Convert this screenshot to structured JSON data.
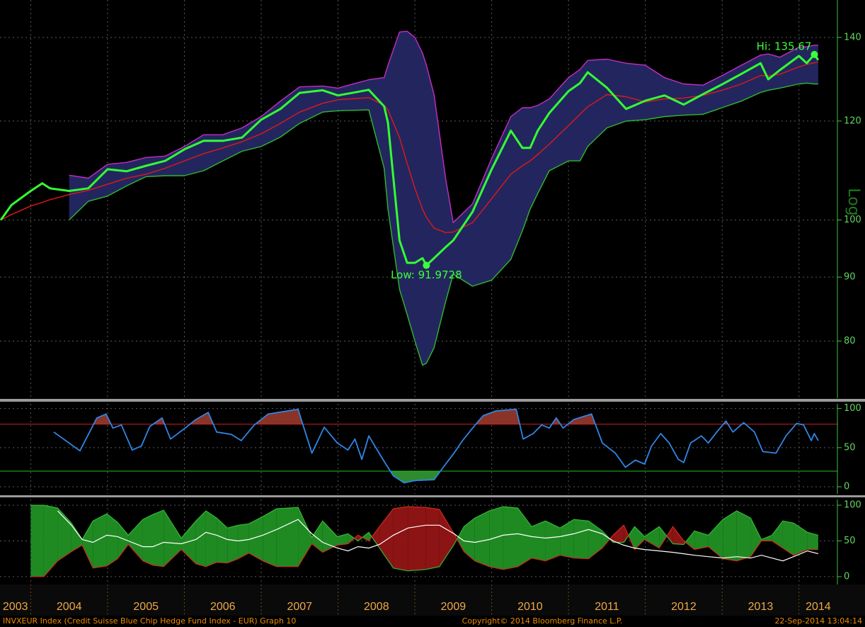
{
  "chart_data": [
    {
      "type": "line",
      "log_scale": true,
      "grid": true,
      "ylabel": "Log",
      "xlim": [
        2003.6,
        2014.5
      ],
      "xticks": [
        2003,
        2004,
        2005,
        2006,
        2007,
        2008,
        2009,
        2010,
        2011,
        2012,
        2013,
        2014
      ],
      "ylim": [
        72,
        150
      ],
      "yticks": [
        80,
        90,
        100,
        120,
        140
      ],
      "band_color": "#23265e",
      "x": [
        2003.61,
        2003.75,
        2004,
        2004.15,
        2004.25,
        2004.5,
        2004.75,
        2005,
        2005.25,
        2005.5,
        2005.75,
        2006,
        2006.25,
        2006.5,
        2006.75,
        2007,
        2007.25,
        2007.5,
        2007.8,
        2008,
        2008.4,
        2008.6,
        2008.65,
        2008.8,
        2008.9,
        2009,
        2009.1,
        2009.15,
        2009.25,
        2009.4,
        2009.5,
        2009.75,
        2010,
        2010.25,
        2010.4,
        2010.5,
        2010.6,
        2010.75,
        2011,
        2011.15,
        2011.25,
        2011.5,
        2011.75,
        2012,
        2012.25,
        2012.5,
        2012.75,
        2013,
        2013.25,
        2013.5,
        2013.6,
        2013.75,
        2014,
        2014.1,
        2014.2,
        2014.25
      ],
      "series": [
        {
          "color": "#c62cc6",
          "values": [
            null,
            null,
            null,
            null,
            null,
            108.6,
            108,
            110.8,
            111.2,
            112.2,
            112.5,
            114.5,
            117,
            117,
            118.5,
            121,
            124.5,
            127.8,
            128,
            127.5,
            129.5,
            130,
            133,
            141.4,
            141.6,
            140,
            136,
            133,
            126,
            108,
            99.5,
            103,
            112,
            121,
            123,
            123,
            123.5,
            125,
            130,
            132,
            134.2,
            134.5,
            133.5,
            133,
            130,
            128.5,
            128.2,
            130.5,
            133,
            135.5,
            135.8,
            135,
            137.5,
            137.6,
            138,
            138
          ]
        },
        {
          "color": "#2fb82f",
          "values": [
            null,
            null,
            null,
            null,
            null,
            100,
            103.5,
            104.5,
            106.5,
            108.3,
            108.5,
            108.5,
            109.5,
            111.5,
            113.5,
            114.5,
            116.5,
            119.5,
            122,
            122.3,
            122.5,
            110,
            102,
            88,
            84,
            80,
            76.5,
            76.8,
            79,
            86,
            90.5,
            88.5,
            89.5,
            93,
            98,
            102,
            105,
            109.5,
            111.5,
            111.5,
            114.5,
            118.5,
            120,
            120.3,
            121,
            121.3,
            121.5,
            123,
            124.5,
            126.5,
            127,
            127.5,
            128.5,
            128.7,
            128.5,
            128.5
          ]
        },
        {
          "color": "#e01818",
          "values": [
            100,
            101,
            102.6,
            103.3,
            103.8,
            104.8,
            105.6,
            106.8,
            108,
            108.8,
            110,
            111.5,
            113,
            114.2,
            115.5,
            117.2,
            119.5,
            122,
            124,
            124.8,
            125.3,
            123.5,
            122.5,
            116.4,
            111,
            106,
            102,
            100.5,
            98.5,
            97.7,
            97.8,
            99.5,
            104,
            108.8,
            110.5,
            111.5,
            112.8,
            115,
            119,
            121.5,
            123.2,
            126,
            125.5,
            124.3,
            125,
            125.2,
            125.8,
            127,
            128.5,
            130.5,
            130.4,
            130.8,
            132.6,
            133.2,
            133.6,
            133.8
          ]
        },
        {
          "color": "#33ff33",
          "values": [
            100,
            102.8,
            105.5,
            107,
            106,
            105.5,
            106,
            109.8,
            109.4,
            110.5,
            111.5,
            113.9,
            115.7,
            115.7,
            116.4,
            120.3,
            122.7,
            126.4,
            127,
            125.8,
            127.1,
            123.3,
            119.6,
            96.3,
            92.4,
            92.4,
            93.2,
            91.9728,
            93.2,
            95.1,
            96.3,
            101.5,
            109.8,
            117.9,
            114.2,
            114.2,
            117.9,
            121.8,
            126.8,
            128.7,
            131.3,
            127.6,
            122.7,
            124.6,
            125.8,
            123.7,
            126.1,
            128.4,
            130.9,
            133.5,
            129.6,
            131.8,
            135.3,
            133.5,
            135.67,
            134.3
          ]
        }
      ],
      "annotations": [
        {
          "text": "Hi: 135.67",
          "x": 2014.2,
          "y": 135.67
        },
        {
          "text": "Low: 91.9728",
          "x": 2009.15,
          "y": 91.9728
        }
      ]
    },
    {
      "type": "line",
      "grid": true,
      "ylim": [
        -9,
        106
      ],
      "yticks": [
        0,
        50,
        100
      ],
      "reference_lines": [
        {
          "value": 80,
          "color": "#d42020",
          "fill": "#8a3328"
        },
        {
          "value": 20,
          "color": "#22c022",
          "fill": "#2e8b2e"
        }
      ],
      "x": [
        2004.3,
        2004.64,
        2004.86,
        2004.98,
        2005.07,
        2005.18,
        2005.32,
        2005.44,
        2005.55,
        2005.71,
        2005.82,
        2006.01,
        2006.15,
        2006.31,
        2006.42,
        2006.61,
        2006.74,
        2006.91,
        2007.09,
        2007.48,
        2007.66,
        2007.82,
        2007.99,
        2008.13,
        2008.22,
        2008.31,
        2008.4,
        2008.59,
        2008.72,
        2008.86,
        2009,
        2009.25,
        2009.37,
        2009.51,
        2009.62,
        2009.76,
        2009.89,
        2010.06,
        2010.32,
        2010.41,
        2010.54,
        2010.65,
        2010.75,
        2010.84,
        2010.93,
        2011.07,
        2011.3,
        2011.44,
        2011.61,
        2011.74,
        2011.87,
        2011.99,
        2012.08,
        2012.2,
        2012.31,
        2012.43,
        2012.5,
        2012.59,
        2012.73,
        2012.82,
        2012.93,
        2013.05,
        2013.14,
        2013.28,
        2013.42,
        2013.53,
        2013.7,
        2013.83,
        2013.97,
        2014.06,
        2014.16,
        2014.2,
        2014.25
      ],
      "series": [
        {
          "color": "#2f86e6",
          "values": [
            70,
            46,
            88,
            93,
            75,
            79,
            47,
            52,
            77,
            88,
            61,
            75,
            86,
            95,
            70,
            67,
            59,
            79,
            93,
            99,
            43,
            76,
            56,
            47,
            61,
            35,
            65,
            34,
            14,
            5,
            8,
            9,
            25,
            43,
            59,
            76,
            91,
            97,
            99,
            61,
            68,
            79,
            75,
            88,
            75,
            86,
            93,
            56,
            43,
            25,
            34,
            29,
            52,
            68,
            56,
            35,
            31,
            56,
            65,
            56,
            70,
            84,
            70,
            82,
            70,
            45,
            43,
            65,
            81,
            79,
            59,
            68,
            59
          ]
        }
      ]
    },
    {
      "type": "area",
      "grid": true,
      "ylim": [
        -11,
        108
      ],
      "yticks": [
        0,
        50,
        100
      ],
      "fill_colors": {
        "positive": "#1f8a22",
        "negative": "#8c1414"
      },
      "x": [
        2004,
        2004.17,
        2004.35,
        2004.53,
        2004.67,
        2004.81,
        2004.99,
        2005.13,
        2005.27,
        2005.46,
        2005.59,
        2005.73,
        2005.96,
        2006.15,
        2006.28,
        2006.42,
        2006.56,
        2006.7,
        2006.84,
        2007.02,
        2007.2,
        2007.48,
        2007.66,
        2007.8,
        2007.99,
        2008.13,
        2008.26,
        2008.4,
        2008.54,
        2008.72,
        2008.91,
        2009.14,
        2009.32,
        2009.51,
        2009.64,
        2009.78,
        2009.97,
        2010.15,
        2010.34,
        2010.52,
        2010.7,
        2010.89,
        2011.07,
        2011.26,
        2011.44,
        2011.58,
        2011.72,
        2011.86,
        2011.99,
        2012.18,
        2012.36,
        2012.5,
        2012.64,
        2012.82,
        2013.01,
        2013.19,
        2013.37,
        2013.51,
        2013.65,
        2013.79,
        2013.93,
        2014.11,
        2014.25
      ],
      "series": [
        {
          "color": "#35b835",
          "values": [
            100,
            100,
            96,
            75,
            52,
            78,
            88,
            76,
            58,
            80,
            87,
            93,
            54,
            78,
            92,
            82,
            68,
            72,
            74,
            84,
            95,
            97,
            55,
            78,
            56,
            60,
            50,
            62,
            40,
            12,
            8,
            10,
            14,
            45,
            70,
            82,
            92,
            98,
            96,
            70,
            78,
            68,
            80,
            78,
            64,
            48,
            48,
            70,
            56,
            70,
            46,
            45,
            64,
            58,
            80,
            92,
            82,
            52,
            58,
            78,
            75,
            62,
            58
          ]
        },
        {
          "color": "#d02a1a",
          "values": [
            0,
            0,
            22,
            35,
            44,
            12,
            15,
            25,
            45,
            22,
            16,
            14,
            38,
            18,
            14,
            20,
            19,
            25,
            33,
            22,
            14,
            14,
            46,
            34,
            44,
            46,
            58,
            50,
            70,
            95,
            98,
            97,
            94,
            60,
            35,
            22,
            14,
            10,
            14,
            26,
            22,
            30,
            26,
            25,
            40,
            58,
            72,
            38,
            52,
            40,
            70,
            50,
            38,
            42,
            25,
            22,
            28,
            50,
            50,
            40,
            30,
            38,
            38
          ]
        },
        {
          "color": "#ffffff",
          "values": [
            null,
            null,
            92,
            72,
            52,
            48,
            58,
            56,
            50,
            42,
            42,
            48,
            46,
            52,
            62,
            58,
            52,
            50,
            52,
            58,
            66,
            80,
            60,
            48,
            40,
            36,
            42,
            40,
            45,
            58,
            68,
            72,
            72,
            60,
            50,
            48,
            52,
            58,
            60,
            56,
            54,
            56,
            60,
            66,
            60,
            50,
            44,
            40,
            38,
            36,
            34,
            32,
            30,
            28,
            26,
            28,
            26,
            30,
            26,
            22,
            28,
            36,
            32
          ]
        }
      ]
    }
  ],
  "footer": {
    "left": "INVXEUR Index (Credit Suisse Blue Chip Hedge Fund Index - EUR) Graph 10",
    "center": "Copyright© 2014 Bloomberg Finance L.P.",
    "right": "22-Sep-2014 13:04:14"
  }
}
